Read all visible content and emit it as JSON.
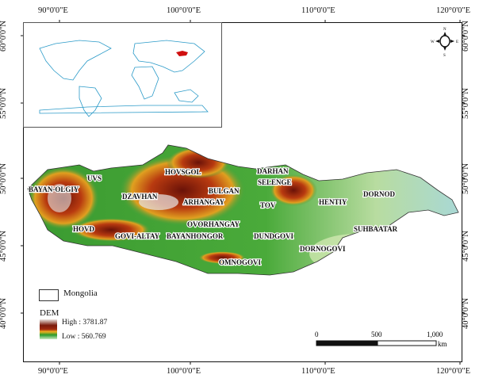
{
  "axes": {
    "top_lon": [
      "90°0'0\"E",
      "100°0'0\"E",
      "110°0'0\"E",
      "120°0'0\"E"
    ],
    "bottom_lon": [
      "90°0'0\"E",
      "100°0'0\"E",
      "110°0'0\"E",
      "120°0'0\"E"
    ],
    "left_lat": [
      "60°0'0\"N",
      "55°0'0\"N",
      "50°0'0\"N",
      "45°0'0\"N",
      "40°0'0\"N"
    ],
    "right_lat": [
      "60°0'0\"N",
      "55°0'0\"N",
      "50°0'0\"N",
      "45°0'0\"N",
      "40°0'0\"N"
    ]
  },
  "provinces": [
    "UVS",
    "BAYAN-OLGIY",
    "HOVSGOL",
    "DARHAN",
    "SELENGE",
    "BULGAN",
    "DZAVHAN",
    "ARHANGAY",
    "TOV",
    "HENTIY",
    "DORNOD",
    "OVORHANGAY",
    "HOVD",
    "GOVI-ALTAY",
    "BAYANHONGOR",
    "DUNDGOVI",
    "SUHBAATAR",
    "DORNOGOVI",
    "OMNOGOVI"
  ],
  "legend": {
    "boundary_label": "Mongolia",
    "dem_title": "DEM",
    "high": "High : 3781.87",
    "low": "Low : 560.769",
    "ramp_colors": [
      "#f5f5f0",
      "#7a1a0a",
      "#c8501a",
      "#f0b020",
      "#2a9a2a",
      "#b8e0b0"
    ]
  },
  "scalebar": {
    "ticks": [
      "0",
      "500",
      "1,000"
    ],
    "unit": "km"
  },
  "compass": {
    "n": "N",
    "s": "S",
    "e": "E",
    "w": "W"
  },
  "inset": {
    "highlight_color": "#d01010",
    "coast_color": "#2a9ac8"
  }
}
